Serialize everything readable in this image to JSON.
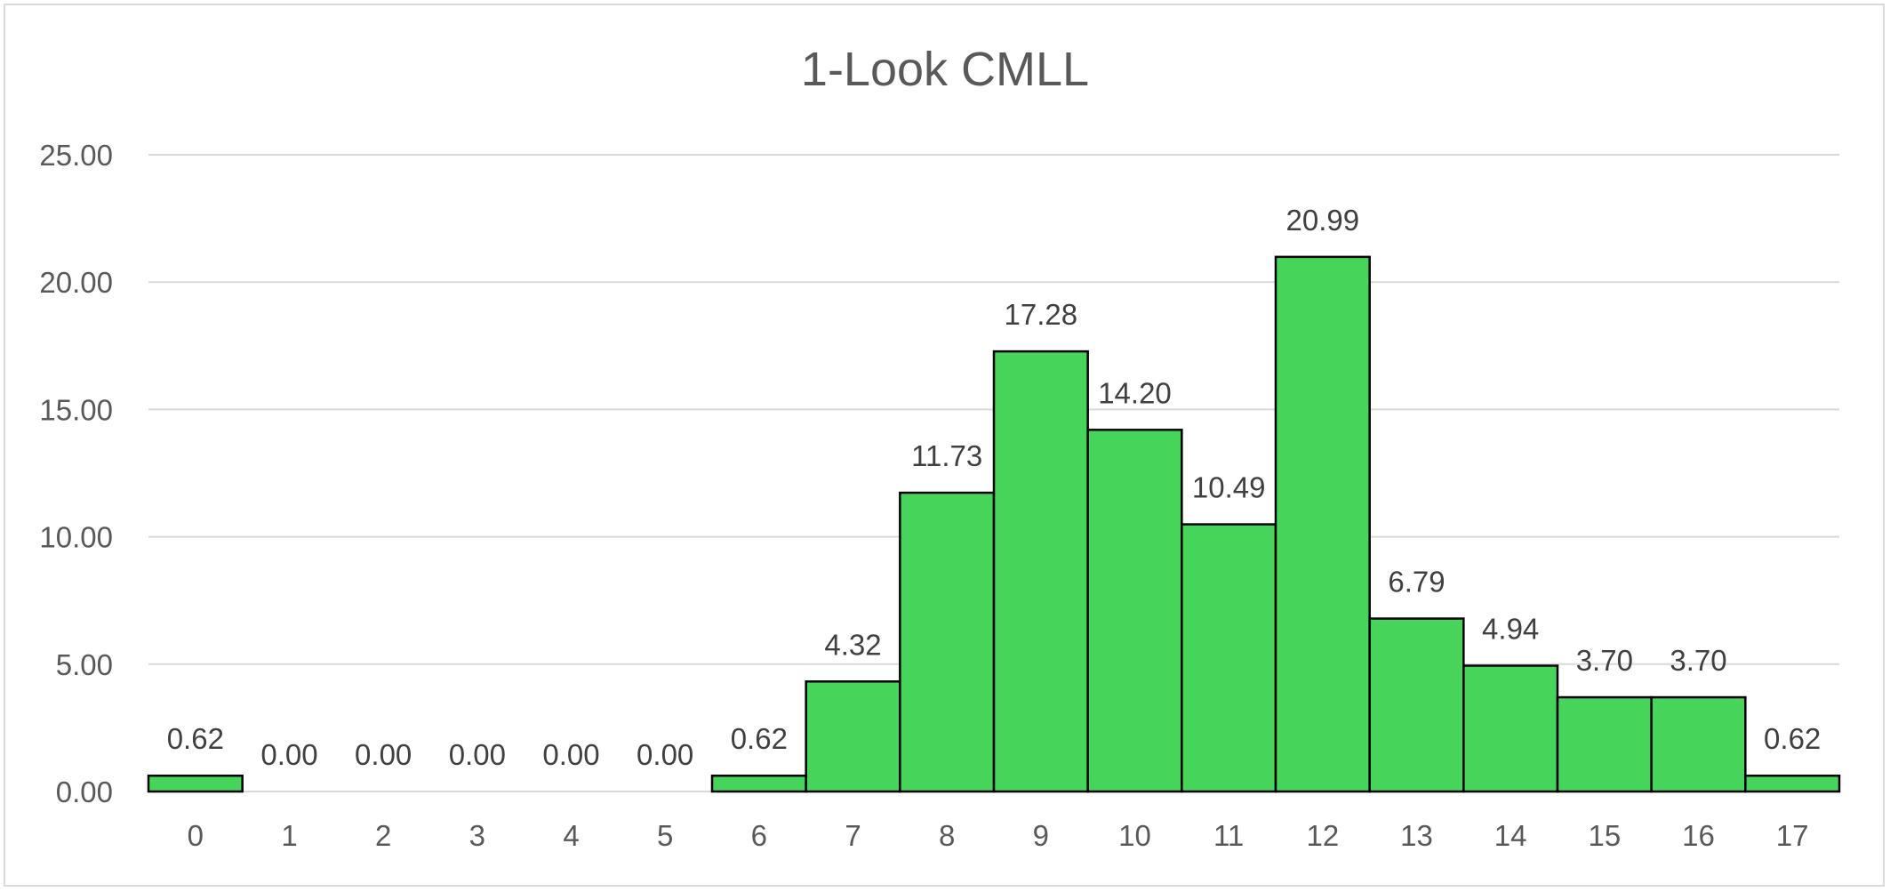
{
  "chart_data": {
    "type": "bar",
    "title": "1-Look CMLL",
    "xlabel": "",
    "ylabel": "",
    "categories": [
      "0",
      "1",
      "2",
      "3",
      "4",
      "5",
      "6",
      "7",
      "8",
      "9",
      "10",
      "11",
      "12",
      "13",
      "14",
      "15",
      "16",
      "17"
    ],
    "values": [
      0.62,
      0.0,
      0.0,
      0.0,
      0.0,
      0.0,
      0.62,
      4.32,
      11.73,
      17.28,
      14.2,
      10.49,
      20.99,
      6.79,
      4.94,
      3.7,
      3.7,
      0.62
    ],
    "data_labels": [
      "0.62",
      "0.00",
      "0.00",
      "0.00",
      "0.00",
      "0.00",
      "0.62",
      "4.32",
      "11.73",
      "17.28",
      "14.20",
      "10.49",
      "20.99",
      "6.79",
      "4.94",
      "3.70",
      "3.70",
      "0.62"
    ],
    "ylim": [
      0,
      25
    ],
    "yticks": [
      "0.00",
      "5.00",
      "10.00",
      "15.00",
      "20.00",
      "25.00"
    ],
    "grid": true,
    "legend": "none",
    "bar_color": "#47d45a",
    "bar_edge_color": "#000000"
  }
}
